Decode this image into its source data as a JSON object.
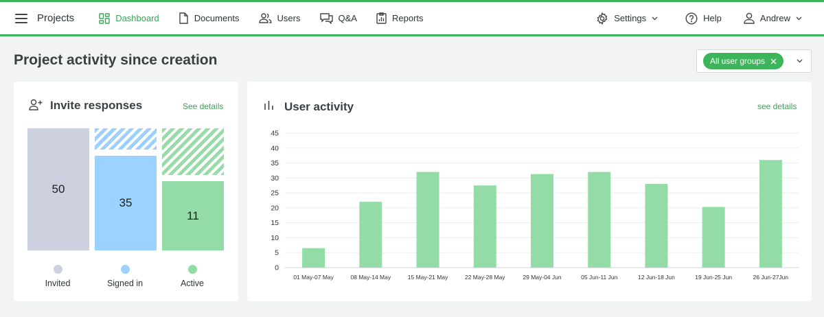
{
  "topbar": {
    "brand": "Projects",
    "nav": [
      {
        "label": "Dashboard",
        "icon": "dashboard-icon",
        "active": true
      },
      {
        "label": "Documents",
        "icon": "document-icon"
      },
      {
        "label": "Users",
        "icon": "users-icon"
      },
      {
        "label": "Q&A",
        "icon": "chat-icon"
      },
      {
        "label": "Reports",
        "icon": "report-icon"
      }
    ],
    "settings_label": "Settings",
    "help_label": "Help",
    "user_label": "Andrew"
  },
  "page": {
    "title": "Project activity since creation",
    "filter_chip": "All user groups"
  },
  "invites": {
    "title": "Invite responses",
    "see_details": "See details",
    "columns": [
      {
        "label": "Invited",
        "value": "50",
        "color": "#cdd0de"
      },
      {
        "label": "Signed in",
        "value": "35",
        "color": "#9bd2ff"
      },
      {
        "label": "Active",
        "value": "11",
        "color": "#93dba7"
      }
    ]
  },
  "activity": {
    "title": "User activity",
    "see_details": "see details"
  },
  "chart_data": {
    "type": "bar",
    "categories": [
      "01 May-07 May",
      "08 May-14 May",
      "15 May-21 May",
      "22 May-28 May",
      "29 May-04 Jun",
      "05 Jun-11 Jun",
      "12 Jun-18 Jun",
      "19 Jun-25 Jun",
      "26 Jun-27Jun"
    ],
    "values": [
      6.5,
      22,
      32,
      27.5,
      31.3,
      32,
      28,
      20.3,
      36
    ],
    "ylim": [
      0,
      45
    ],
    "yticks": [
      0,
      5,
      10,
      15,
      20,
      25,
      30,
      35,
      40,
      45
    ],
    "bar_color": "#93dba7",
    "grid": true
  }
}
